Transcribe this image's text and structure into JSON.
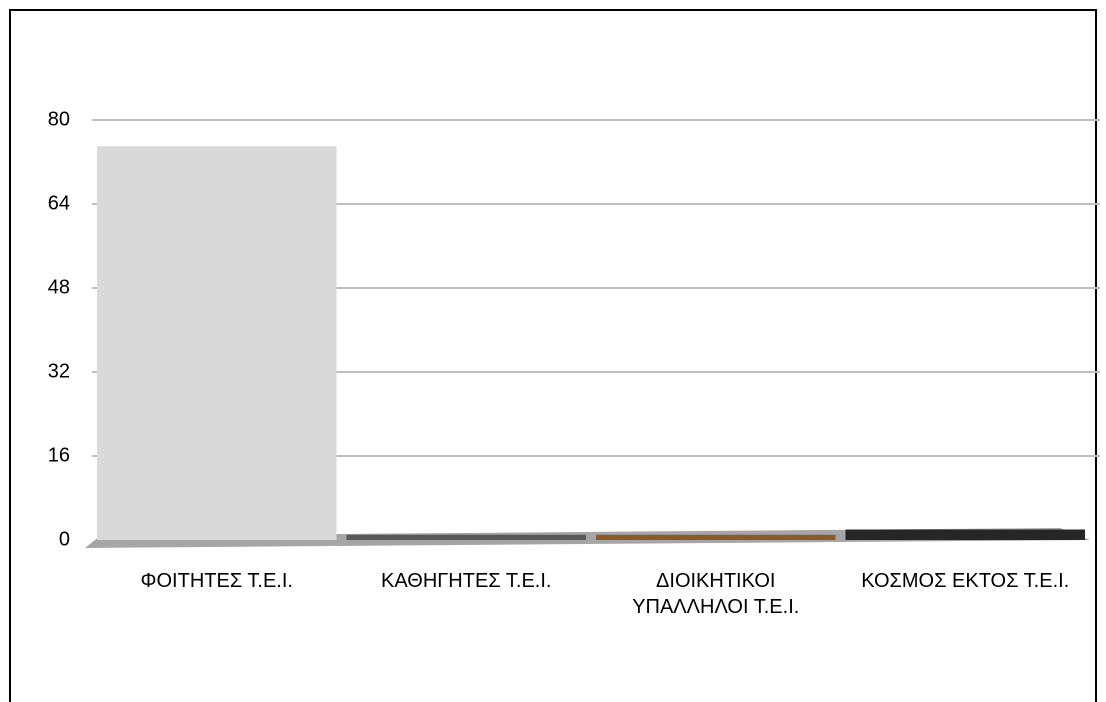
{
  "chart_data": {
    "type": "bar",
    "categories": [
      "ΦΟΙΤΗΤΕΣ Τ.Ε.Ι.",
      "ΚΑΘΗΓΗΤΕΣ Τ.Ε.Ι.",
      "ΔΙΟΙΚΗΤΙΚΟΙ ΥΠΑΛΛΗΛΟΙ Τ.Ε.Ι.",
      "ΚΟΣΜΟΣ ΕΚΤΟΣ Τ.Ε.Ι."
    ],
    "values": [
      75,
      1,
      1,
      2
    ],
    "colors": [
      "#d9d9d9",
      "#595959",
      "#8b5a2b",
      "#262626"
    ],
    "ylim": [
      0,
      80
    ],
    "yticks": [
      0,
      16,
      32,
      48,
      64,
      80
    ],
    "grid": true
  }
}
